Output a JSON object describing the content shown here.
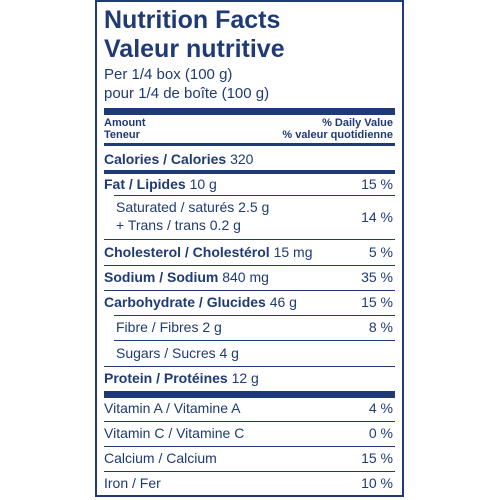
{
  "title_en": "Nutrition Facts",
  "title_fr": "Valeur nutritive",
  "serving_en": "Per 1/4 box (100 g)",
  "serving_fr": "pour 1/4 de boîte (100 g)",
  "header": {
    "amount": "Amount",
    "teneur": "Teneur",
    "dv_en": "% Daily Value",
    "dv_fr": "% valeur quotidienne"
  },
  "calories": {
    "label": "Calories / Calories",
    "value": "320"
  },
  "fat": {
    "label": "Fat / Lipides",
    "amount": "10 g",
    "dv": "15 %"
  },
  "saturated": {
    "line1": "Saturated / saturés 2.5 g",
    "line2": "+ Trans / trans 0.2 g",
    "dv": "14 %"
  },
  "cholesterol": {
    "label": "Cholesterol / Cholestérol",
    "amount": "15 mg",
    "dv": "5 %"
  },
  "sodium": {
    "label": "Sodium / Sodium",
    "amount": "840 mg",
    "dv": "35 %"
  },
  "carbohydrate": {
    "label": "Carbohydrate / Glucides",
    "amount": "46 g",
    "dv": "15 %"
  },
  "fibre": {
    "label": "Fibre / Fibres 2 g",
    "dv": "8 %"
  },
  "sugars": {
    "label": "Sugars / Sucres 4 g"
  },
  "protein": {
    "label": "Protein / Protéines",
    "amount": "12 g"
  },
  "vitamin_a": {
    "label": "Vitamin A / Vitamine A",
    "dv": "4 %"
  },
  "vitamin_c": {
    "label": "Vitamin C / Vitamine C",
    "dv": "0 %"
  },
  "calcium": {
    "label": "Calcium / Calcium",
    "dv": "15 %"
  },
  "iron": {
    "label": "Iron / Fer",
    "dv": "10 %"
  }
}
